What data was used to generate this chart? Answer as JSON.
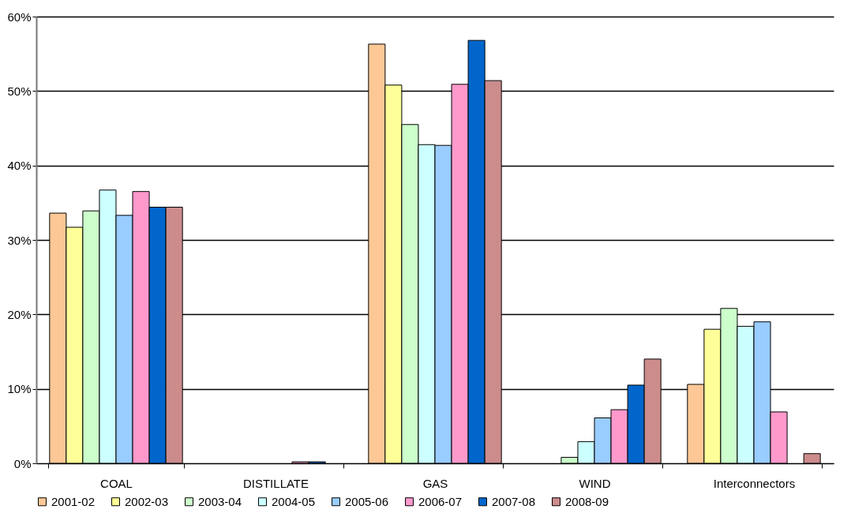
{
  "chart_data": {
    "type": "bar",
    "categories": [
      "COAL",
      "DISTILLATE",
      "GAS",
      "WIND",
      "Interconnectors"
    ],
    "series": [
      {
        "name": "2001-02",
        "color": "#fdc896",
        "values": [
          33.6,
          null,
          56.3,
          null,
          10.6
        ]
      },
      {
        "name": "2002-03",
        "color": "#ffff99",
        "values": [
          31.7,
          null,
          50.8,
          null,
          18.0
        ]
      },
      {
        "name": "2003-04",
        "color": "#ccffcc",
        "values": [
          33.9,
          null,
          45.5,
          0.8,
          20.8
        ]
      },
      {
        "name": "2004-05",
        "color": "#ccffff",
        "values": [
          36.7,
          null,
          42.8,
          2.9,
          18.4
        ]
      },
      {
        "name": "2005-06",
        "color": "#99ccff",
        "values": [
          33.3,
          null,
          42.7,
          6.1,
          19.0
        ]
      },
      {
        "name": "2006-07",
        "color": "#ff99cc",
        "values": [
          36.5,
          0.2,
          50.9,
          7.2,
          6.9
        ]
      },
      {
        "name": "2007-08",
        "color": "#0066cc",
        "values": [
          34.4,
          0.2,
          56.8,
          10.5,
          null
        ]
      },
      {
        "name": "2008-09",
        "color": "#cc8c8c",
        "values": [
          34.4,
          null,
          51.4,
          14.0,
          1.3
        ]
      }
    ],
    "ylim": [
      0,
      60
    ],
    "yticks": [
      {
        "value": 0,
        "label": "0%"
      },
      {
        "value": 10,
        "label": "10%"
      },
      {
        "value": 20,
        "label": "20%"
      },
      {
        "value": 30,
        "label": "30%"
      },
      {
        "value": 40,
        "label": "40%"
      },
      {
        "value": 50,
        "label": "50%"
      },
      {
        "value": 60,
        "label": "60%"
      }
    ],
    "grid": "y",
    "legend": "bottom"
  }
}
